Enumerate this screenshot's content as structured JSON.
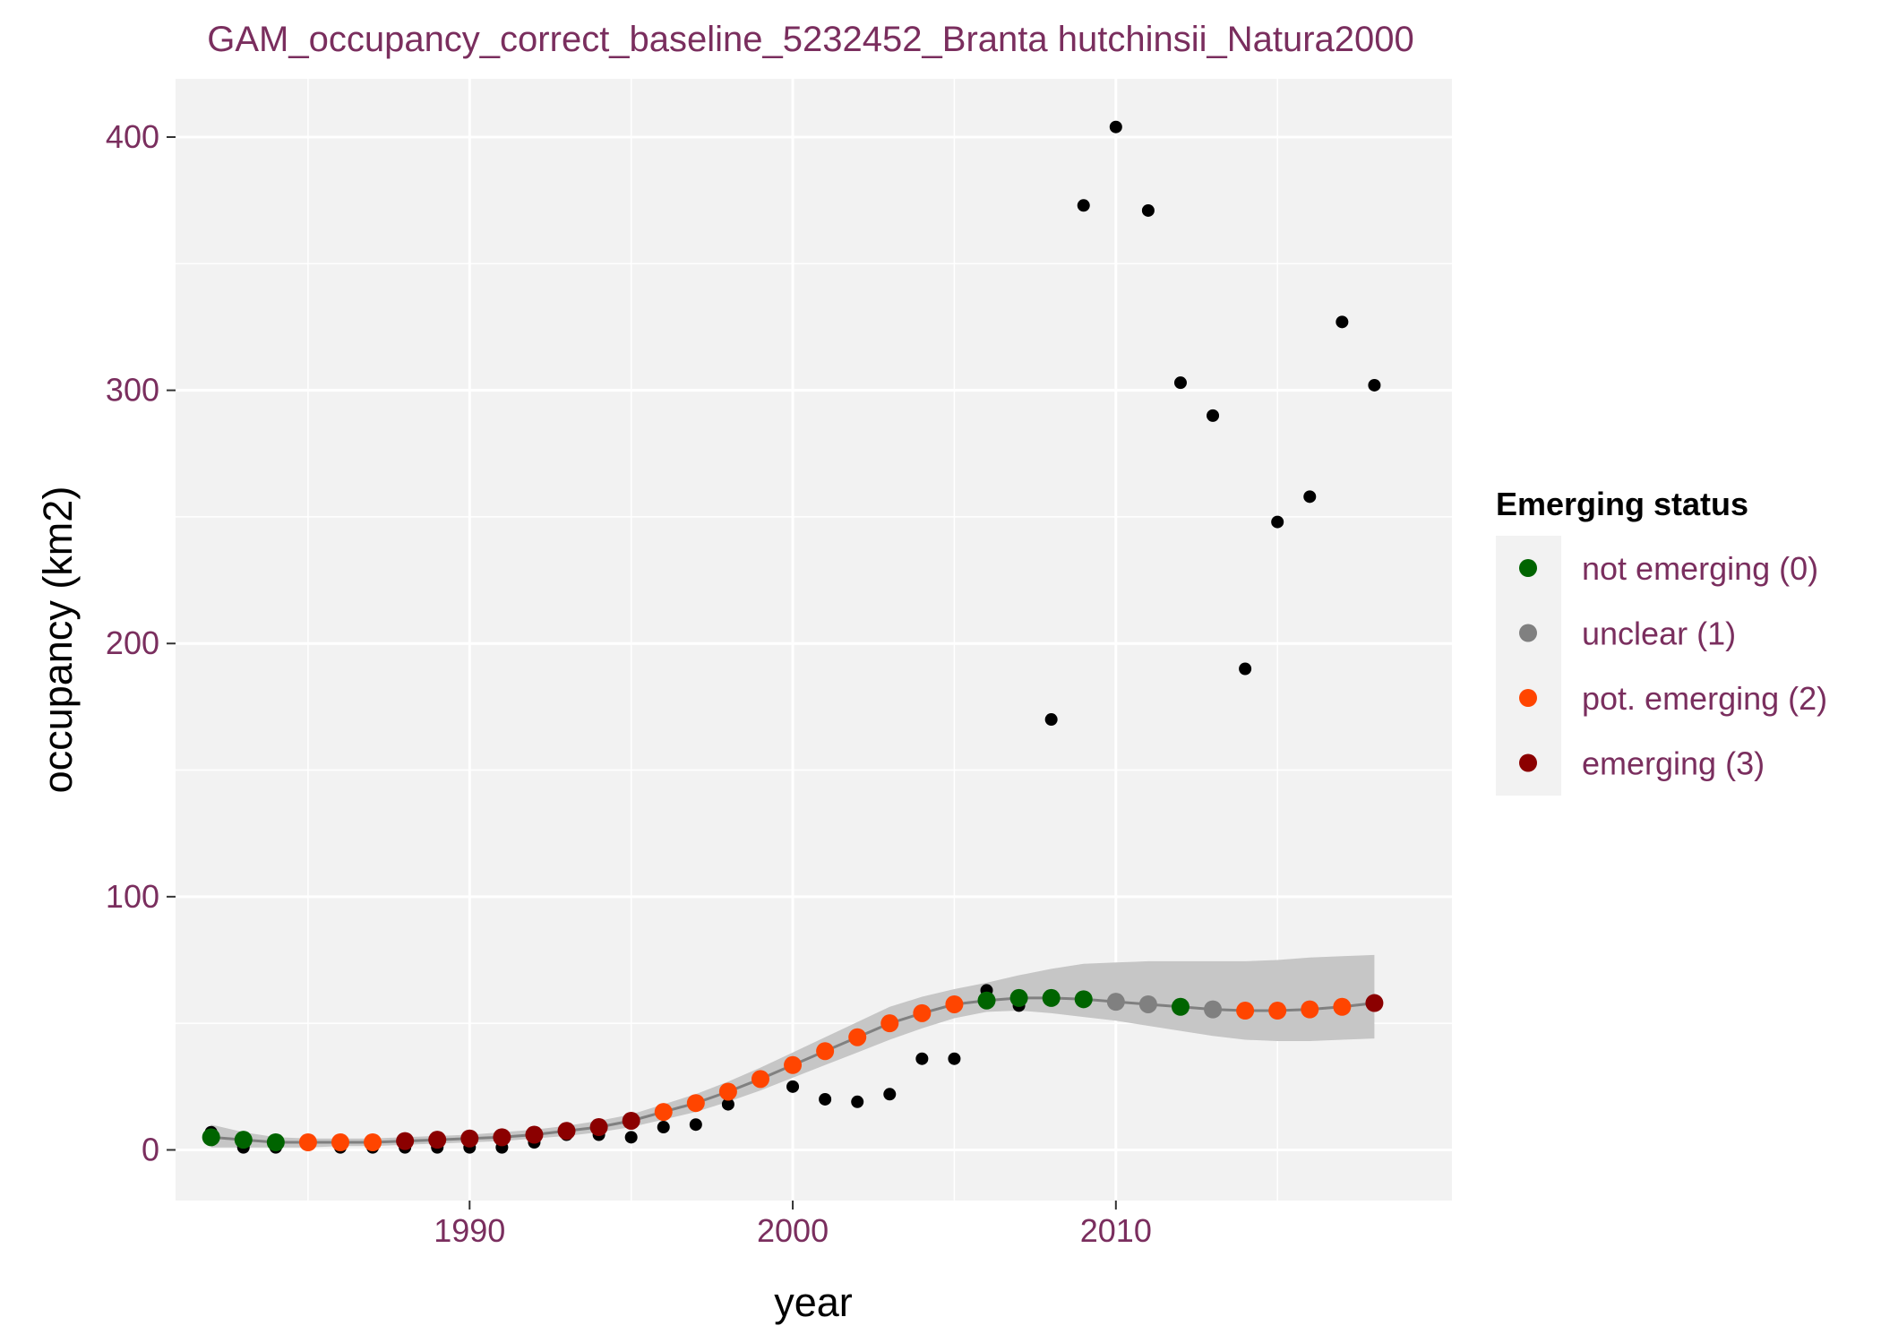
{
  "chart_data": {
    "type": "scatter",
    "title": "GAM_occupancy_correct_baseline_5232452_Branta hutchinsii_Natura2000",
    "xlabel": "year",
    "ylabel": "occupancy (km2)",
    "xlim": [
      1980.9,
      2020.4
    ],
    "ylim": [
      -20,
      423
    ],
    "x_ticks": [
      1990,
      2000,
      2010
    ],
    "y_ticks": [
      0,
      100,
      200,
      300,
      400
    ],
    "grid": true,
    "legend": {
      "title": "Emerging status",
      "placement": "right",
      "items": [
        {
          "label": "not emerging (0)",
          "color": "#006400"
        },
        {
          "label": "unclear (1)",
          "color": "#808080"
        },
        {
          "label": "pot. emerging (2)",
          "color": "#ff4500"
        },
        {
          "label": "emerging (3)",
          "color": "#8b0000"
        }
      ]
    },
    "observed": {
      "color": "#000000",
      "x": [
        1982,
        1983,
        1984,
        1985,
        1986,
        1987,
        1988,
        1989,
        1990,
        1991,
        1992,
        1993,
        1994,
        1995,
        1996,
        1997,
        1998,
        2000,
        2001,
        2002,
        2003,
        2004,
        2005,
        2006,
        2007,
        2008,
        2009,
        2010,
        2011,
        2012,
        2013,
        2014,
        2015,
        2016,
        2017,
        2018
      ],
      "y": [
        7,
        1,
        1,
        3,
        1,
        1,
        1,
        1,
        1,
        1,
        3,
        6,
        6,
        5,
        9,
        10,
        18,
        25,
        20,
        19,
        22,
        36,
        36,
        63,
        57,
        170,
        373,
        404,
        371,
        303,
        290,
        190,
        248,
        258,
        327,
        302
      ]
    },
    "fitted": {
      "line_color": "#808080",
      "band_color": "#c3c3c3",
      "x": [
        1982,
        1983,
        1984,
        1985,
        1986,
        1987,
        1988,
        1989,
        1990,
        1991,
        1992,
        1993,
        1994,
        1995,
        1996,
        1997,
        1998,
        1999,
        2000,
        2001,
        2002,
        2003,
        2004,
        2005,
        2006,
        2007,
        2008,
        2009,
        2010,
        2011,
        2012,
        2013,
        2014,
        2015,
        2016,
        2017,
        2018
      ],
      "y": [
        5,
        4,
        3,
        3,
        3,
        3,
        3.5,
        4,
        4.5,
        5,
        6,
        7.5,
        9,
        11.5,
        15,
        18.5,
        23,
        28,
        33.5,
        39,
        44.5,
        50,
        54,
        57.5,
        59,
        60,
        60,
        59.5,
        58.5,
        57.5,
        56.5,
        55.5,
        55,
        55,
        55.5,
        56.5,
        58
      ],
      "lower": [
        1,
        1,
        1,
        1,
        1.5,
        1.5,
        2,
        2.5,
        3,
        3.5,
        4.5,
        5.5,
        7,
        9,
        12,
        15,
        19,
        23.5,
        28.5,
        33.5,
        38.5,
        43.5,
        48,
        52,
        54.5,
        55,
        54,
        52.5,
        51,
        49,
        47,
        45,
        43.5,
        43,
        43,
        43.5,
        44
      ],
      "upper": [
        10,
        7,
        5,
        4.5,
        4.5,
        4.5,
        5,
        5.5,
        6,
        7,
        8,
        9.5,
        11.5,
        14,
        18,
        22,
        27,
        32.5,
        38.5,
        44.5,
        50.5,
        56.5,
        60.5,
        63.5,
        66,
        69,
        71.5,
        73.5,
        74,
        74.5,
        74.5,
        74.5,
        74.5,
        75,
        76,
        76.5,
        77
      ],
      "status": [
        0,
        0,
        0,
        2,
        2,
        2,
        3,
        3,
        3,
        3,
        3,
        3,
        3,
        3,
        2,
        2,
        2,
        2,
        2,
        2,
        2,
        2,
        2,
        2,
        0,
        0,
        0,
        0,
        1,
        1,
        0,
        1,
        2,
        2,
        2,
        2,
        3
      ]
    }
  }
}
